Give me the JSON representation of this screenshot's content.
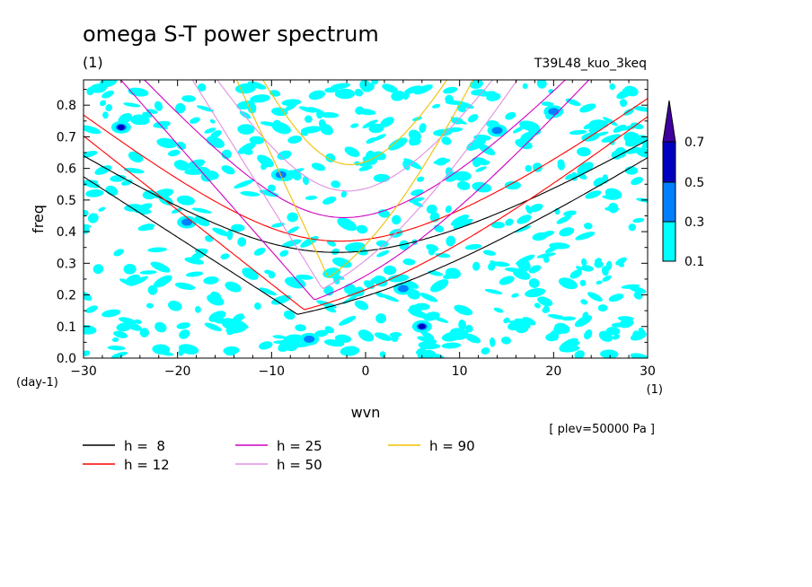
{
  "chart_data": {
    "type": "heatmap",
    "title": "omega S-T power spectrum",
    "unit_label": "(1)",
    "experiment": "T39L48_kuo_3keq",
    "xlabel": "wvn",
    "ylabel": "freq",
    "x_unit": "(1)",
    "y_unit": "(day-1)",
    "level_note": "[ plev=50000 Pa ]",
    "xlim": [
      -30,
      30
    ],
    "ylim": [
      0,
      0.88
    ],
    "x_ticks": [
      -30,
      -20,
      -10,
      0,
      10,
      20,
      30
    ],
    "y_ticks": [
      0.0,
      0.1,
      0.2,
      0.3,
      0.4,
      0.5,
      0.6,
      0.7,
      0.8
    ],
    "colorbar": {
      "levels": [
        0.1,
        0.3,
        0.5,
        0.7
      ],
      "colors": [
        "#00ffff",
        "#0080ff",
        "#0000c0",
        "#4000a0"
      ],
      "labels": [
        "0.1",
        "0.3",
        "0.5",
        "0.7"
      ]
    },
    "curves": [
      {
        "name": "h =  8",
        "h": 8,
        "color": "#000000"
      },
      {
        "name": "h = 12",
        "h": 12,
        "color": "#ff0000"
      },
      {
        "name": "h = 25",
        "h": 25,
        "color": "#d000c0"
      },
      {
        "name": "h = 50",
        "h": 50,
        "color": "#e090e0"
      },
      {
        "name": "h = 90",
        "h": 90,
        "color": "#f0c000"
      }
    ],
    "strong_spots": [
      {
        "wvn": 6,
        "freq": 0.1,
        "value": 0.6
      },
      {
        "wvn": -26,
        "freq": 0.73,
        "value": 0.5
      },
      {
        "wvn": -9,
        "freq": 0.58,
        "value": 0.4
      },
      {
        "wvn": -19,
        "freq": 0.43,
        "value": 0.4
      },
      {
        "wvn": 20,
        "freq": 0.78,
        "value": 0.4
      },
      {
        "wvn": 14,
        "freq": 0.72,
        "value": 0.3
      },
      {
        "wvn": 4,
        "freq": 0.22,
        "value": 0.3
      },
      {
        "wvn": -6,
        "freq": 0.06,
        "value": 0.3
      }
    ]
  }
}
